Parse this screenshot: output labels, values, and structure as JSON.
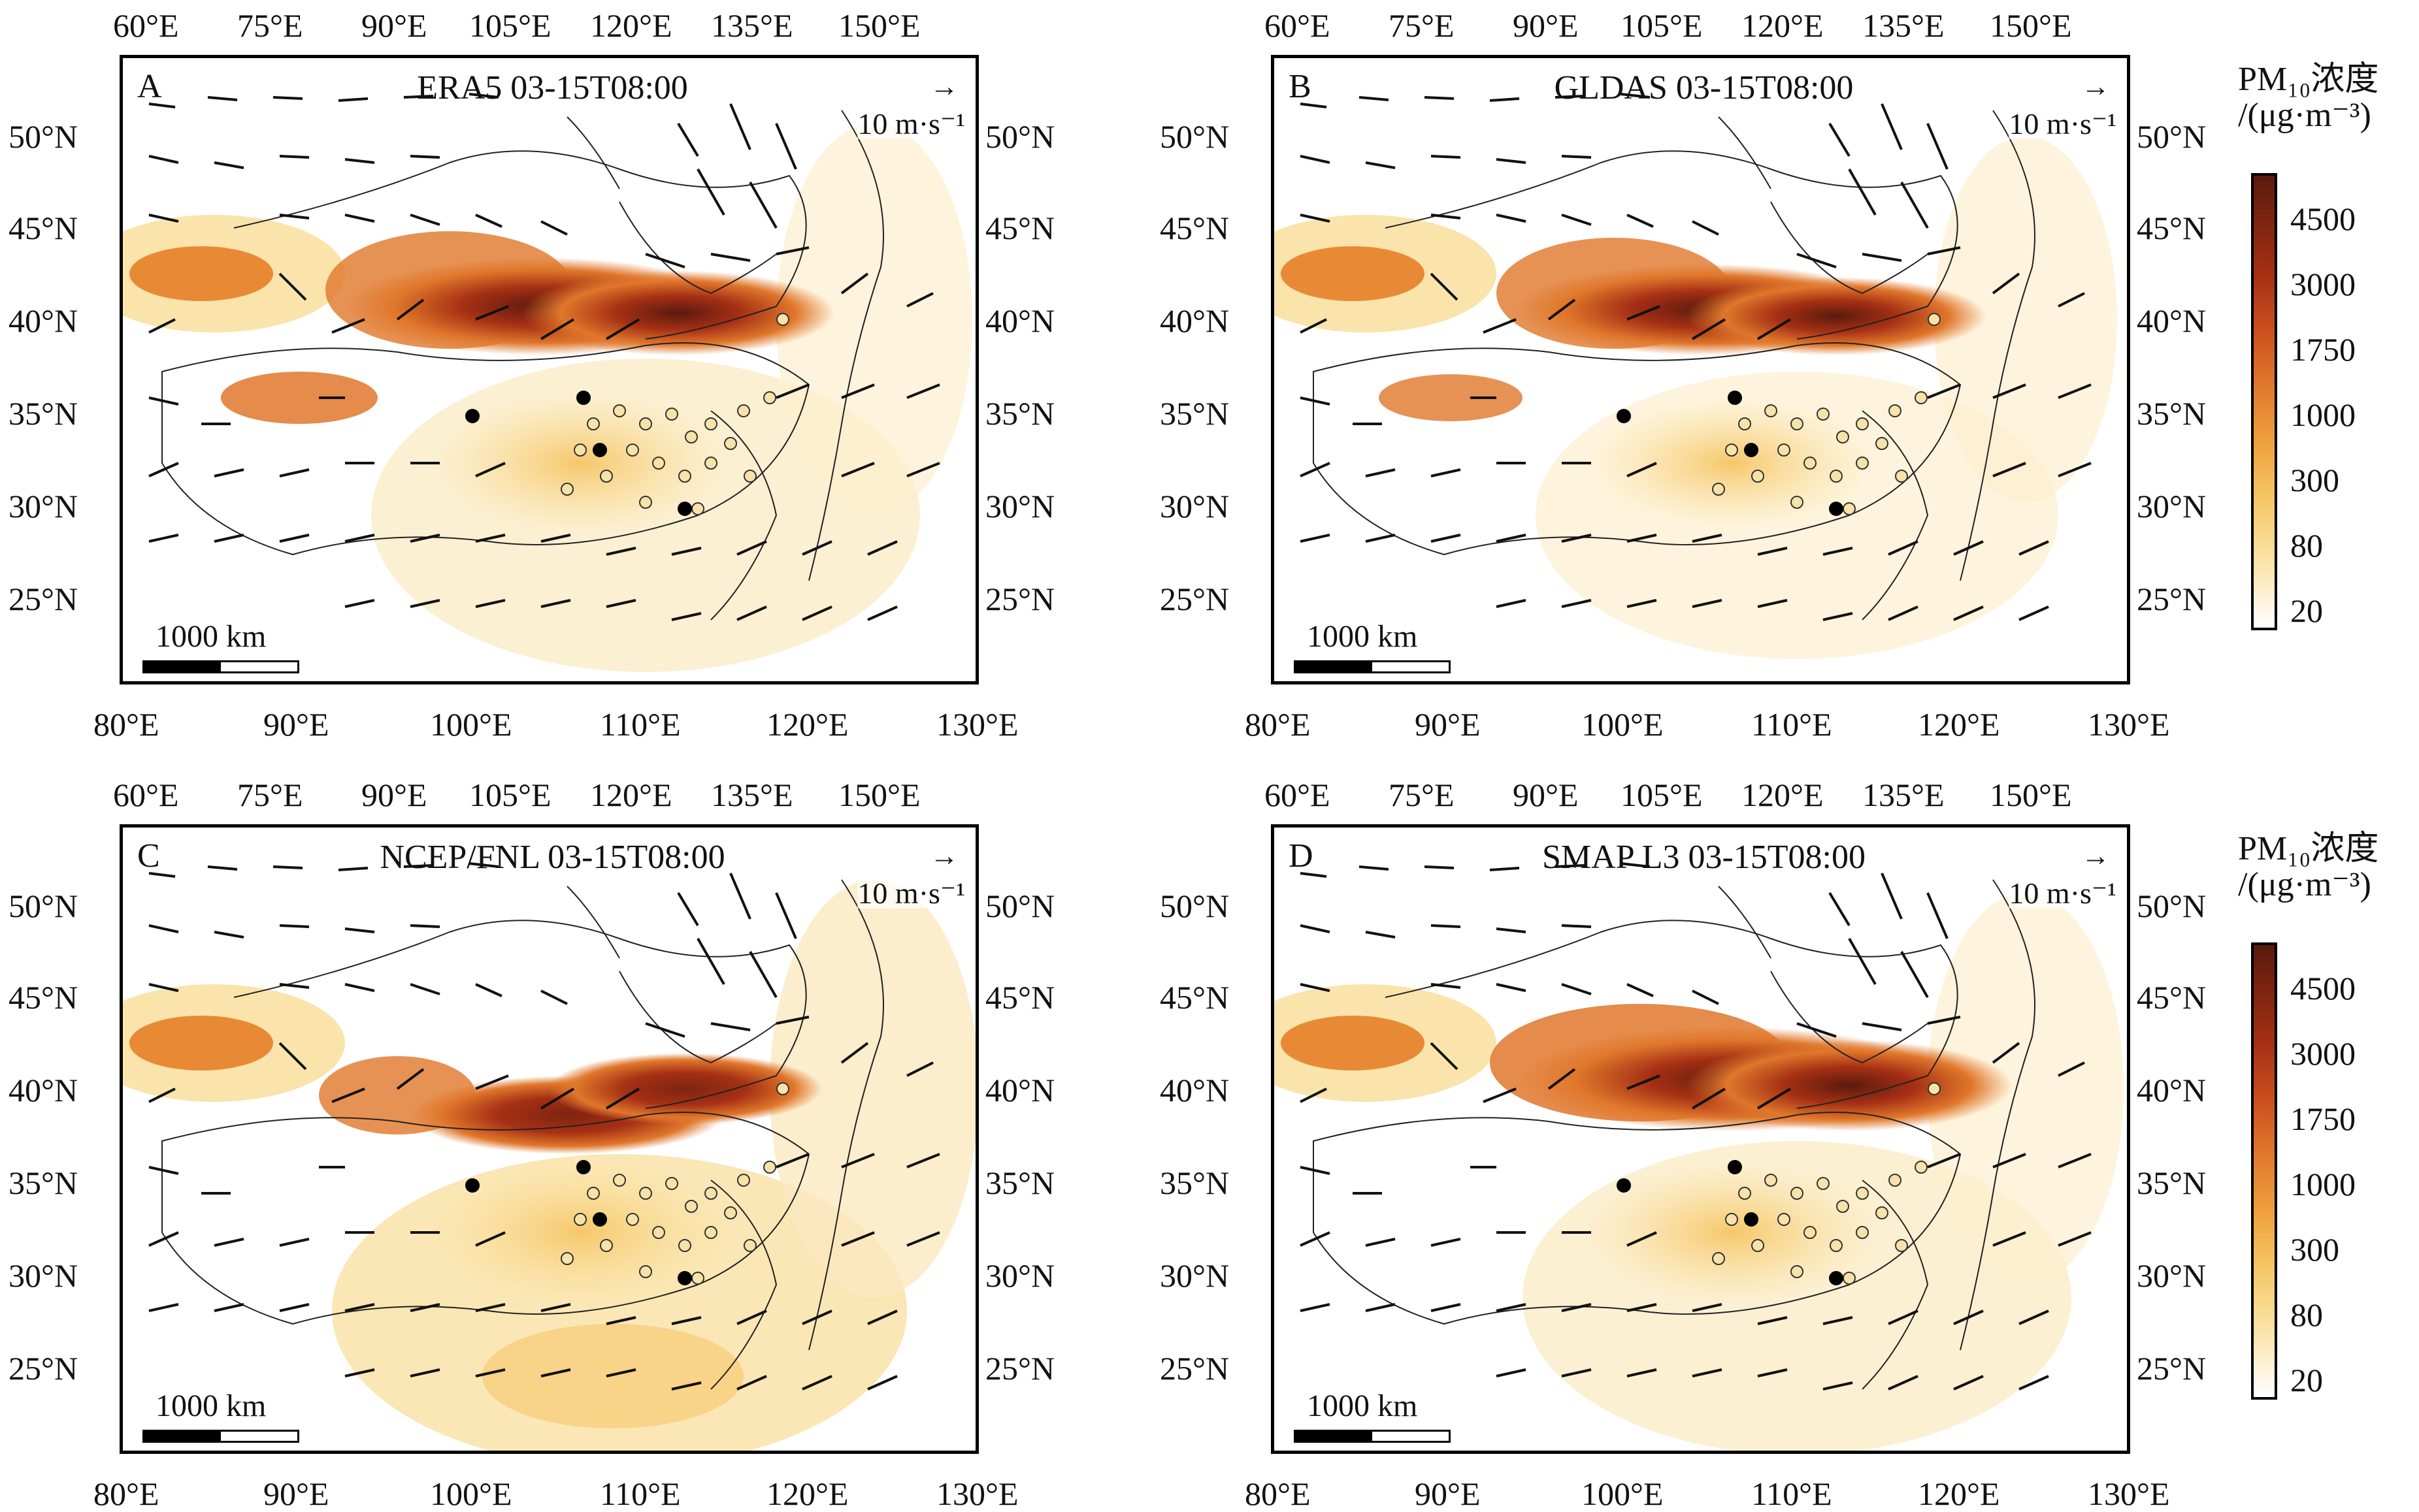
{
  "panels": [
    {
      "letter": "A",
      "title": "ERA5 03-15T08:00",
      "ref_arrow": "→",
      "ref_label": "10 m·s⁻¹",
      "scale_label": "1000 km"
    },
    {
      "letter": "B",
      "title": "GLDAS 03-15T08:00",
      "ref_arrow": "→",
      "ref_label": "10 m·s⁻¹",
      "scale_label": "1000 km"
    },
    {
      "letter": "C",
      "title": "NCEP/FNL 03-15T08:00",
      "ref_arrow": "→",
      "ref_label": "10 m·s⁻¹",
      "scale_label": "1000 km"
    },
    {
      "letter": "D",
      "title": "SMAP L3 03-15T08:00",
      "ref_arrow": "→",
      "ref_label": "10 m·s⁻¹",
      "scale_label": "1000 km"
    }
  ],
  "axes": {
    "top_lon": [
      "60°E",
      "75°E",
      "90°E",
      "105°E",
      "120°E",
      "135°E",
      "150°E"
    ],
    "bottom_lon": [
      "80°E",
      "90°E",
      "100°E",
      "110°E",
      "120°E",
      "130°E"
    ],
    "lat": [
      "50°N",
      "45°N",
      "40°N",
      "35°N",
      "30°N",
      "25°N"
    ]
  },
  "legend": {
    "title_line1": "PM₁₀浓度",
    "title_line2": "/(μg·m⁻³)",
    "levels": [
      "4500",
      "3000",
      "1750",
      "1000",
      "300",
      "80",
      "20"
    ]
  }
}
